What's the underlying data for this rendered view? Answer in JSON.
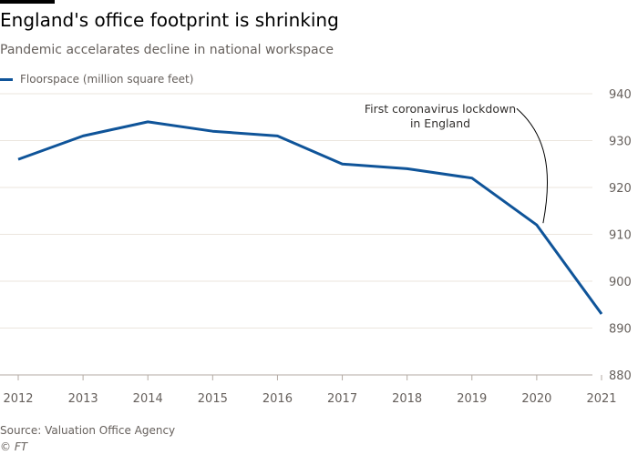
{
  "title": "England's office footprint is shrinking",
  "subtitle": "Pandemic accelarates decline in national workspace",
  "source": "Source: Valuation Office Agency",
  "credit": "© FT",
  "colors": {
    "line": "#0f5499",
    "grid": "#ebe5de"
  },
  "chart_data": {
    "type": "line",
    "x": [
      2012,
      2013,
      2014,
      2015,
      2016,
      2017,
      2018,
      2019,
      2020,
      2021
    ],
    "series": [
      {
        "name": "Floorspace (million square feet)",
        "values": [
          926,
          931,
          934,
          932,
          931,
          925,
          924,
          922,
          912,
          893
        ]
      }
    ],
    "ylim": [
      880,
      940
    ],
    "yticks": [
      880,
      890,
      900,
      910,
      920,
      930,
      940
    ],
    "xticks": [
      2012,
      2013,
      2014,
      2015,
      2016,
      2017,
      2018,
      2019,
      2020,
      2021
    ],
    "grid": true,
    "legend": "top-left",
    "annotation": {
      "text": [
        "First coronavirus lockdown",
        "in England"
      ],
      "x": 2020,
      "y": 912
    }
  }
}
